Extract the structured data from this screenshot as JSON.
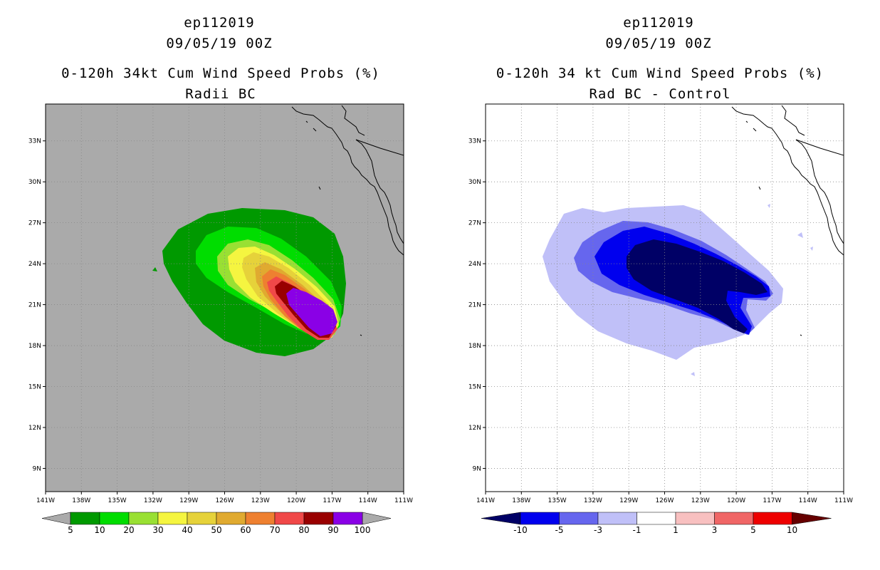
{
  "left_panel": {
    "storm_id": "ep112019",
    "date": "09/05/19 00Z",
    "title": "0-120h 34kt Cum Wind Speed Probs (%)",
    "subtitle": "Radii BC",
    "colorbar": {
      "labels": [
        "5",
        "10",
        "20",
        "30",
        "40",
        "50",
        "60",
        "70",
        "80",
        "90",
        "100"
      ],
      "colors": [
        "#009900",
        "#00dd00",
        "#99e033",
        "#f5f540",
        "#e6d23a",
        "#e0aa30",
        "#ee8030",
        "#f04848",
        "#990000",
        "#8a00e6"
      ]
    },
    "background_color": "#aaaaaa"
  },
  "right_panel": {
    "storm_id": "ep112019",
    "date": "09/05/19 00Z",
    "title": "0-120h 34 kt Cum Wind Speed Probs (%)",
    "subtitle": "Rad BC - Control",
    "colorbar": {
      "labels": [
        "-10",
        "-5",
        "-3",
        "-1",
        "1",
        "3",
        "5",
        "10"
      ],
      "colors": [
        "#0000ee",
        "#6666ee",
        "#c0c0f8",
        "#ffffff",
        "#f8c0c0",
        "#f06666",
        "#ee0000"
      ],
      "end_low": "#000066",
      "end_high": "#660000"
    },
    "background_color": "#ffffff"
  },
  "map": {
    "lat_labels": [
      "33N",
      "30N",
      "27N",
      "24N",
      "21N",
      "18N",
      "15N",
      "12N",
      "9N"
    ],
    "lon_labels": [
      "141W",
      "138W",
      "135W",
      "132W",
      "129W",
      "126W",
      "123W",
      "120W",
      "117W",
      "114W",
      "111W"
    ],
    "lat_values": [
      33,
      30,
      27,
      24,
      21,
      18,
      15,
      12,
      9
    ],
    "lon_values": [
      -141,
      -138,
      -135,
      -132,
      -129,
      -126,
      -123,
      -120,
      -117,
      -114,
      -111
    ],
    "lon_range": [
      -141,
      -111
    ],
    "lat_range": [
      7.3,
      35.7
    ]
  }
}
